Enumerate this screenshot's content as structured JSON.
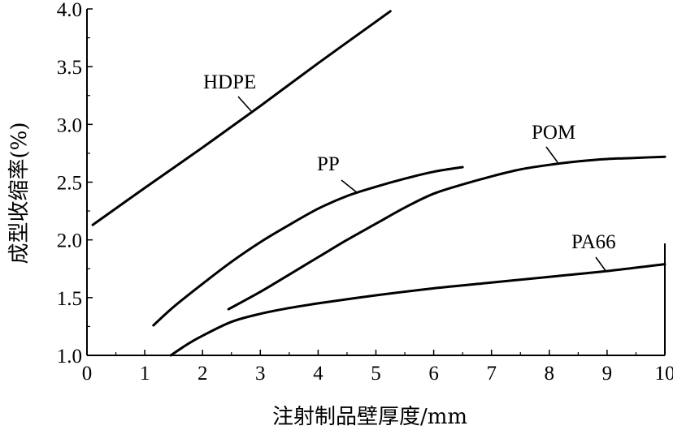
{
  "chart_data": {
    "type": "line",
    "title": "",
    "xlabel": "注射制品壁厚度/mm",
    "ylabel": "成型收缩率(%)",
    "xlim": [
      0,
      10
    ],
    "ylim": [
      1.0,
      4.0
    ],
    "x_ticks": [
      "0",
      "1",
      "2",
      "3",
      "4",
      "5",
      "6",
      "7",
      "8",
      "9",
      "10"
    ],
    "y_ticks": [
      "1.0",
      "1.5",
      "2.0",
      "2.5",
      "3.0",
      "3.5",
      "4.0"
    ],
    "grid": false,
    "series": [
      {
        "name": "HDPE",
        "x": [
          0.1,
          1.0,
          2.0,
          3.0,
          4.0,
          5.0,
          5.25
        ],
        "y": [
          2.13,
          2.45,
          2.8,
          3.16,
          3.53,
          3.89,
          3.98
        ]
      },
      {
        "name": "PP",
        "x": [
          1.15,
          1.5,
          2.0,
          2.5,
          3.0,
          3.5,
          4.0,
          4.5,
          5.0,
          5.5,
          6.0,
          6.5
        ],
        "y": [
          1.26,
          1.42,
          1.62,
          1.81,
          1.98,
          2.13,
          2.27,
          2.38,
          2.46,
          2.53,
          2.59,
          2.63
        ]
      },
      {
        "name": "POM",
        "x": [
          2.45,
          3.0,
          3.5,
          4.0,
          4.5,
          5.0,
          5.5,
          6.0,
          6.5,
          7.0,
          7.5,
          8.0,
          8.5,
          9.0,
          9.5,
          10.0
        ],
        "y": [
          1.4,
          1.55,
          1.7,
          1.85,
          2.0,
          2.14,
          2.28,
          2.4,
          2.48,
          2.55,
          2.61,
          2.65,
          2.68,
          2.7,
          2.71,
          2.72
        ]
      },
      {
        "name": "PA66",
        "x": [
          1.45,
          1.75,
          2.0,
          2.5,
          3.0,
          3.5,
          4.0,
          5.0,
          6.0,
          7.0,
          8.0,
          9.0,
          10.0
        ],
        "y": [
          1.0,
          1.1,
          1.17,
          1.29,
          1.36,
          1.41,
          1.45,
          1.52,
          1.58,
          1.63,
          1.68,
          1.73,
          1.79
        ]
      }
    ],
    "annotations": [
      {
        "series": "HDPE",
        "text": "HDPE"
      },
      {
        "series": "PP",
        "text": "PP"
      },
      {
        "series": "POM",
        "text": "POM"
      },
      {
        "series": "PA66",
        "text": "PA66"
      }
    ]
  }
}
